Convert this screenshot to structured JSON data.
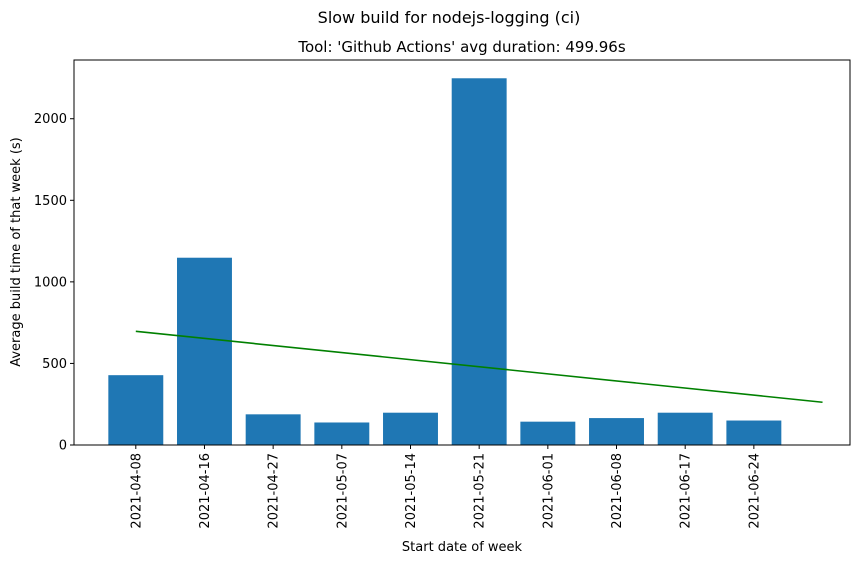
{
  "chart_data": {
    "type": "bar",
    "suptitle": "Slow build for nodejs-logging (ci)",
    "title": "Tool: 'Github Actions' avg duration: 499.96s",
    "xlabel": "Start date of week",
    "ylabel": "Average build time of that week (s)",
    "categories": [
      "2021-04-08",
      "2021-04-16",
      "2021-04-27",
      "2021-05-07",
      "2021-05-14",
      "2021-05-21",
      "2021-06-01",
      "2021-06-08",
      "2021-06-17",
      "2021-06-24"
    ],
    "values": [
      428,
      1148,
      188,
      138,
      198,
      2248,
      143,
      165,
      198,
      150
    ],
    "yticks": [
      0,
      500,
      1000,
      1500,
      2000
    ],
    "ylim": [
      0,
      2360
    ],
    "xlim": [
      -0.9,
      10.4
    ],
    "trend": {
      "x": [
        0,
        10
      ],
      "y": [
        697,
        262
      ]
    },
    "colors": {
      "bar": "#1f77b4",
      "trend": "#008000"
    },
    "grid": false
  }
}
